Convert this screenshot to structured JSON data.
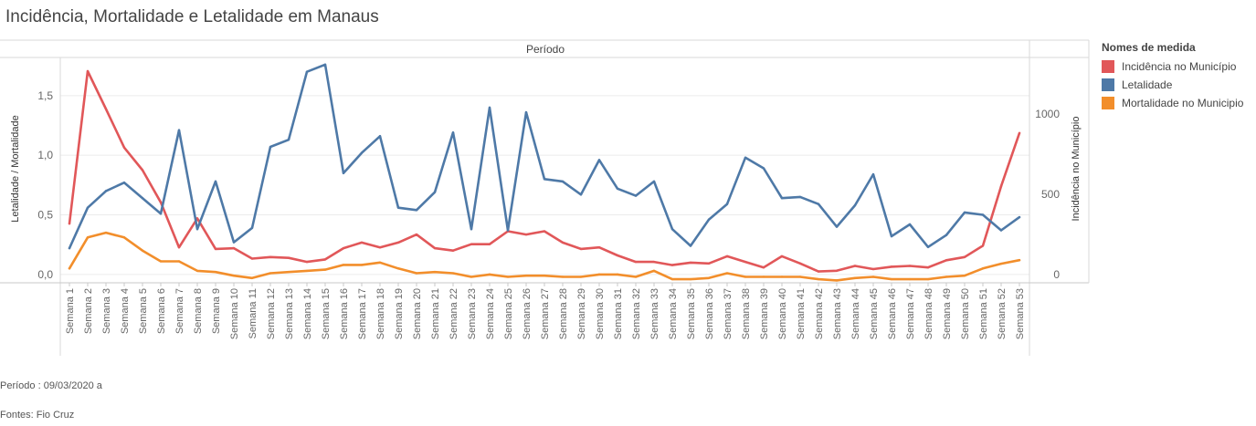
{
  "title": "Incidência, Mortalidade e Letalidade em Manaus",
  "footer": {
    "period": "Período : 09/03/2020 a",
    "source": "Fontes: Fio Cruz"
  },
  "legend": {
    "title": "Nomes de medida",
    "items": [
      {
        "label": "Incidência no Município",
        "color": "#e15759"
      },
      {
        "label": "Letalidade",
        "color": "#4e79a7"
      },
      {
        "label": "Mortalidade no Municipio",
        "color": "#f28e2b"
      }
    ]
  },
  "chart_data": {
    "type": "line",
    "header": "Período",
    "xlabel": "",
    "ylabel_left": "Letalidade / Mortalidade",
    "ylabel_right": "Incidência no Município",
    "ylim_left": [
      -0.07,
      1.82
    ],
    "ylim_right": [
      -50,
      1350
    ],
    "yticks_left": [
      0.0,
      0.5,
      1.0,
      1.5
    ],
    "ytick_labels_left": [
      "0,0",
      "0,5",
      "1,0",
      "1,5"
    ],
    "yticks_right": [
      0,
      500,
      1000
    ],
    "ytick_labels_right": [
      "0",
      "500",
      "1000"
    ],
    "grid": true,
    "categories": [
      "Semana 1",
      "Semana 2",
      "Semana 3",
      "Semana 4",
      "Semana 5",
      "Semana 6",
      "Semana 7",
      "Semana 8",
      "Semana 9",
      "Semana 10",
      "Semana 11",
      "Semana 12",
      "Semana 13",
      "Semana 14",
      "Semana 15",
      "Semana 16",
      "Semana 17",
      "Semana 18",
      "Semana 19",
      "Semana 20",
      "Semana 21",
      "Semana 22",
      "Semana 23",
      "Semana 24",
      "Semana 25",
      "Semana 26",
      "Semana 27",
      "Semana 28",
      "Semana 29",
      "Semana 30",
      "Semana 31",
      "Semana 32",
      "Semana 33",
      "Semana 34",
      "Semana 35",
      "Semana 36",
      "Semana 37",
      "Semana 38",
      "Semana 39",
      "Semana 40",
      "Semana 41",
      "Semana 42",
      "Semana 43",
      "Semana 44",
      "Semana 45",
      "Semana 46",
      "Semana 47",
      "Semana 48",
      "Semana 49",
      "Semana 50",
      "Semana 51",
      "Semana 52",
      "Semana 53"
    ],
    "series": [
      {
        "name": "Incidência no Município",
        "axis": "right",
        "values": [
          318,
          1265,
          1030,
          790,
          650,
          450,
          170,
          350,
          160,
          165,
          100,
          110,
          105,
          80,
          95,
          165,
          200,
          170,
          200,
          250,
          165,
          150,
          190,
          190,
          270,
          250,
          270,
          200,
          160,
          170,
          120,
          80,
          80,
          60,
          75,
          70,
          115,
          80,
          45,
          115,
          70,
          20,
          25,
          55,
          35,
          50,
          55,
          45,
          90,
          110,
          180,
          550,
          880
        ]
      },
      {
        "name": "Letalidade",
        "axis": "left",
        "values": [
          0.22,
          0.56,
          0.7,
          0.77,
          0.64,
          0.51,
          1.21,
          0.38,
          0.78,
          0.27,
          0.39,
          1.07,
          1.13,
          1.7,
          1.76,
          0.85,
          1.02,
          1.16,
          0.56,
          0.54,
          0.69,
          1.19,
          0.38,
          1.4,
          0.37,
          1.36,
          0.8,
          0.78,
          0.67,
          0.96,
          0.72,
          0.66,
          0.78,
          0.38,
          0.24,
          0.46,
          0.59,
          0.98,
          0.89,
          0.64,
          0.65,
          0.59,
          0.4,
          0.58,
          0.84,
          0.32,
          0.42,
          0.23,
          0.33,
          0.52,
          0.5,
          0.37,
          0.48
        ]
      },
      {
        "name": "Mortalidade no Municipio",
        "axis": "left",
        "values": [
          0.05,
          0.31,
          0.35,
          0.31,
          0.2,
          0.11,
          0.11,
          0.03,
          0.02,
          -0.01,
          -0.03,
          0.01,
          0.02,
          0.03,
          0.04,
          0.08,
          0.08,
          0.1,
          0.05,
          0.01,
          0.02,
          0.01,
          -0.02,
          0.0,
          -0.02,
          -0.01,
          -0.01,
          -0.02,
          -0.02,
          0.0,
          0.0,
          -0.02,
          0.03,
          -0.04,
          -0.04,
          -0.03,
          0.01,
          -0.02,
          -0.02,
          -0.02,
          -0.02,
          -0.04,
          -0.05,
          -0.03,
          -0.02,
          -0.04,
          -0.04,
          -0.04,
          -0.02,
          -0.01,
          0.05,
          0.09,
          0.12
        ]
      }
    ]
  }
}
